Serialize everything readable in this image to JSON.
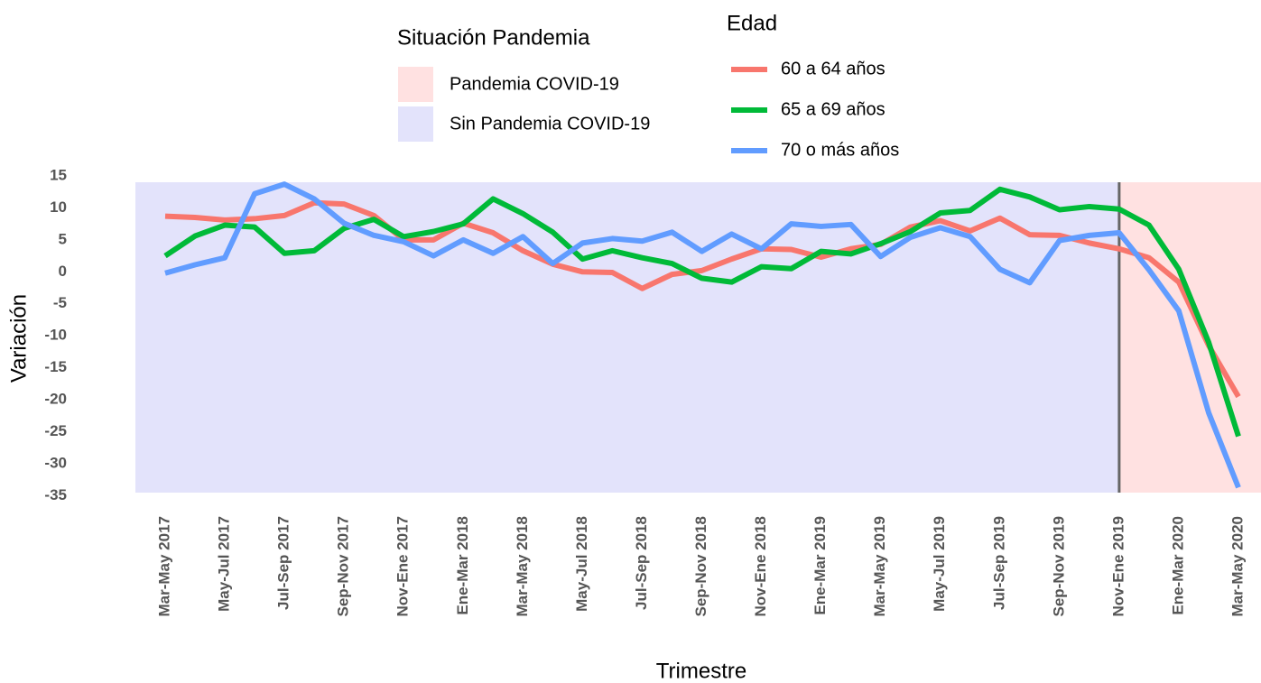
{
  "chart_data": {
    "type": "line",
    "x_label": "Trimestre",
    "y_label": "Variación",
    "categories": [
      "Mar-May 2017",
      null,
      "May-Jul 2017",
      null,
      "Jul-Sep 2017",
      null,
      "Sep-Nov 2017",
      null,
      "Nov-Ene 2017",
      null,
      "Ene-Mar 2018",
      null,
      "Mar-May 2018",
      null,
      "May-Jul 2018",
      null,
      "Jul-Sep 2018",
      null,
      "Sep-Nov 2018",
      null,
      "Nov-Ene 2018",
      null,
      "Ene-Mar 2019",
      null,
      "Mar-May 2019",
      null,
      "May-Jul 2019",
      null,
      "Jul-Sep 2019",
      null,
      "Sep-Nov 2019",
      null,
      "Nov-Ene 2019",
      null,
      "Ene-Mar 2020",
      null,
      "Mar-May 2020"
    ],
    "legend_title": "Edad",
    "series": [
      {
        "name": "60 a 64 años",
        "color": "#f8766d",
        "values": [
          8.7,
          8.5,
          8.1,
          8.3,
          8.8,
          10.8,
          10.6,
          8.8,
          5.0,
          5.0,
          7.6,
          6.1,
          3.3,
          1.2,
          0.0,
          -0.1,
          -2.6,
          -0.4,
          0.2,
          2.0,
          3.6,
          3.5,
          2.3,
          3.6,
          4.3,
          7.0,
          8.0,
          6.4,
          8.4,
          5.8,
          5.7,
          4.5,
          3.6,
          2.2,
          -1.6,
          -11.5,
          -19.5
        ]
      },
      {
        "name": "65 a 69 años",
        "color": "#00ba38",
        "values": [
          2.5,
          5.6,
          7.3,
          7.0,
          2.9,
          3.3,
          6.8,
          8.2,
          5.5,
          6.3,
          7.5,
          11.4,
          9.1,
          6.2,
          2.0,
          3.3,
          2.2,
          1.3,
          -1.0,
          -1.6,
          0.8,
          0.5,
          3.2,
          2.8,
          4.4,
          6.3,
          9.2,
          9.6,
          12.9,
          11.7,
          9.7,
          10.2,
          9.8,
          7.3,
          0.4,
          -11.0,
          -25.7
        ]
      },
      {
        "name": "70 o más años",
        "color": "#619cff",
        "values": [
          -0.2,
          1.1,
          2.2,
          12.2,
          13.7,
          11.4,
          7.6,
          5.7,
          4.7,
          2.5,
          5.0,
          2.9,
          5.5,
          1.3,
          4.5,
          5.2,
          4.8,
          6.2,
          3.2,
          5.9,
          3.6,
          7.5,
          7.1,
          7.4,
          2.4,
          5.4,
          6.9,
          5.5,
          0.4,
          -1.7,
          4.9,
          5.7,
          6.1,
          0.3,
          -6.1,
          -22.0,
          -33.7
        ]
      }
    ],
    "shading": {
      "title": "Situación Pandemia",
      "regions": [
        {
          "name": "Pandemia COVID-19",
          "color": "#ffe1e1",
          "start": "Nov-Ene 2019",
          "end": "Mar-May 2020"
        },
        {
          "name": "Sin Pandemia COVID-19",
          "color": "#e3e3fb",
          "start": "Mar-May 2017",
          "end": "Nov-Ene 2019"
        }
      ]
    },
    "vline": "Nov-Ene 2019",
    "ylim": [
      -34.5,
      14.0
    ],
    "yticks": [
      15,
      10,
      5,
      0,
      -5,
      -10,
      -15,
      -20,
      -25,
      -30,
      -35
    ]
  }
}
